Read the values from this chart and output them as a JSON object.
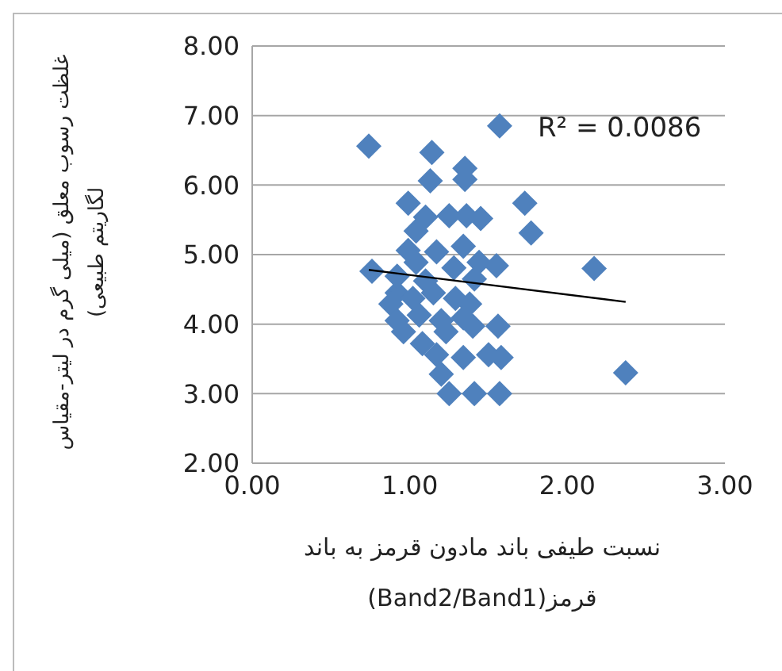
{
  "chart_data": {
    "type": "scatter",
    "xlabel": "نسبت طیفی باند مادون قرمز به باند قرمز(Band2/Band1)",
    "ylabel": "غلظت رسوب معلق (میلی گرم در لیتر-مقیاس لگاریتم طبیعی)",
    "xlim": [
      0,
      3
    ],
    "xticks": [
      {
        "value": 0,
        "label": "0.00"
      },
      {
        "value": 1,
        "label": "1.00"
      },
      {
        "value": 2,
        "label": "2.00"
      },
      {
        "value": 3,
        "label": "3.00"
      }
    ],
    "ylim": [
      2,
      8
    ],
    "yticks": [
      {
        "value": 2,
        "label": "2.00"
      },
      {
        "value": 3,
        "label": "3.00"
      },
      {
        "value": 4,
        "label": "4.00"
      },
      {
        "value": 5,
        "label": "5.00"
      },
      {
        "value": 6,
        "label": "6.00"
      },
      {
        "value": 7,
        "label": "7.00"
      },
      {
        "value": 8,
        "label": "8.00"
      }
    ],
    "grid": "y",
    "annotations": [
      "R² = 0.0086"
    ],
    "series": [
      {
        "marker": "diamond",
        "color": "#4f81bd",
        "x": [
          1.57,
          0.74,
          1.14,
          1.35,
          1.35,
          1.13,
          0.99,
          1.73,
          1.77,
          1.1,
          1.04,
          1.25,
          1.36,
          1.45,
          0.99,
          1.17,
          1.34,
          1.44,
          1.55,
          0.76,
          2.17,
          2.37,
          0.92,
          0.88,
          1.02,
          1.15,
          1.29,
          1.38,
          0.92,
          1.06,
          1.2,
          1.34,
          0.96,
          1.08,
          1.23,
          1.4,
          1.56,
          1.17,
          1.34,
          1.5,
          1.58,
          1.2,
          1.25,
          1.41,
          1.57,
          1.04,
          1.28,
          1.41,
          0.92,
          1.1
        ],
        "values": [
          6.85,
          6.56,
          6.47,
          6.24,
          6.08,
          6.06,
          5.74,
          5.74,
          5.31,
          5.54,
          5.34,
          5.56,
          5.56,
          5.52,
          5.06,
          5.04,
          5.12,
          4.89,
          4.84,
          4.76,
          4.8,
          3.3,
          4.45,
          4.29,
          4.37,
          4.45,
          4.37,
          4.29,
          4.05,
          4.13,
          4.05,
          4.09,
          3.89,
          3.72,
          3.89,
          3.97,
          3.97,
          3.56,
          3.52,
          3.56,
          3.52,
          3.28,
          3.0,
          3.0,
          3.0,
          4.89,
          4.81,
          4.65,
          4.69,
          4.62
        ]
      },
      {
        "type": "line",
        "marker": "none",
        "color": "#000000",
        "x": [
          0.74,
          2.37
        ],
        "values": [
          4.78,
          4.32
        ]
      }
    ]
  }
}
